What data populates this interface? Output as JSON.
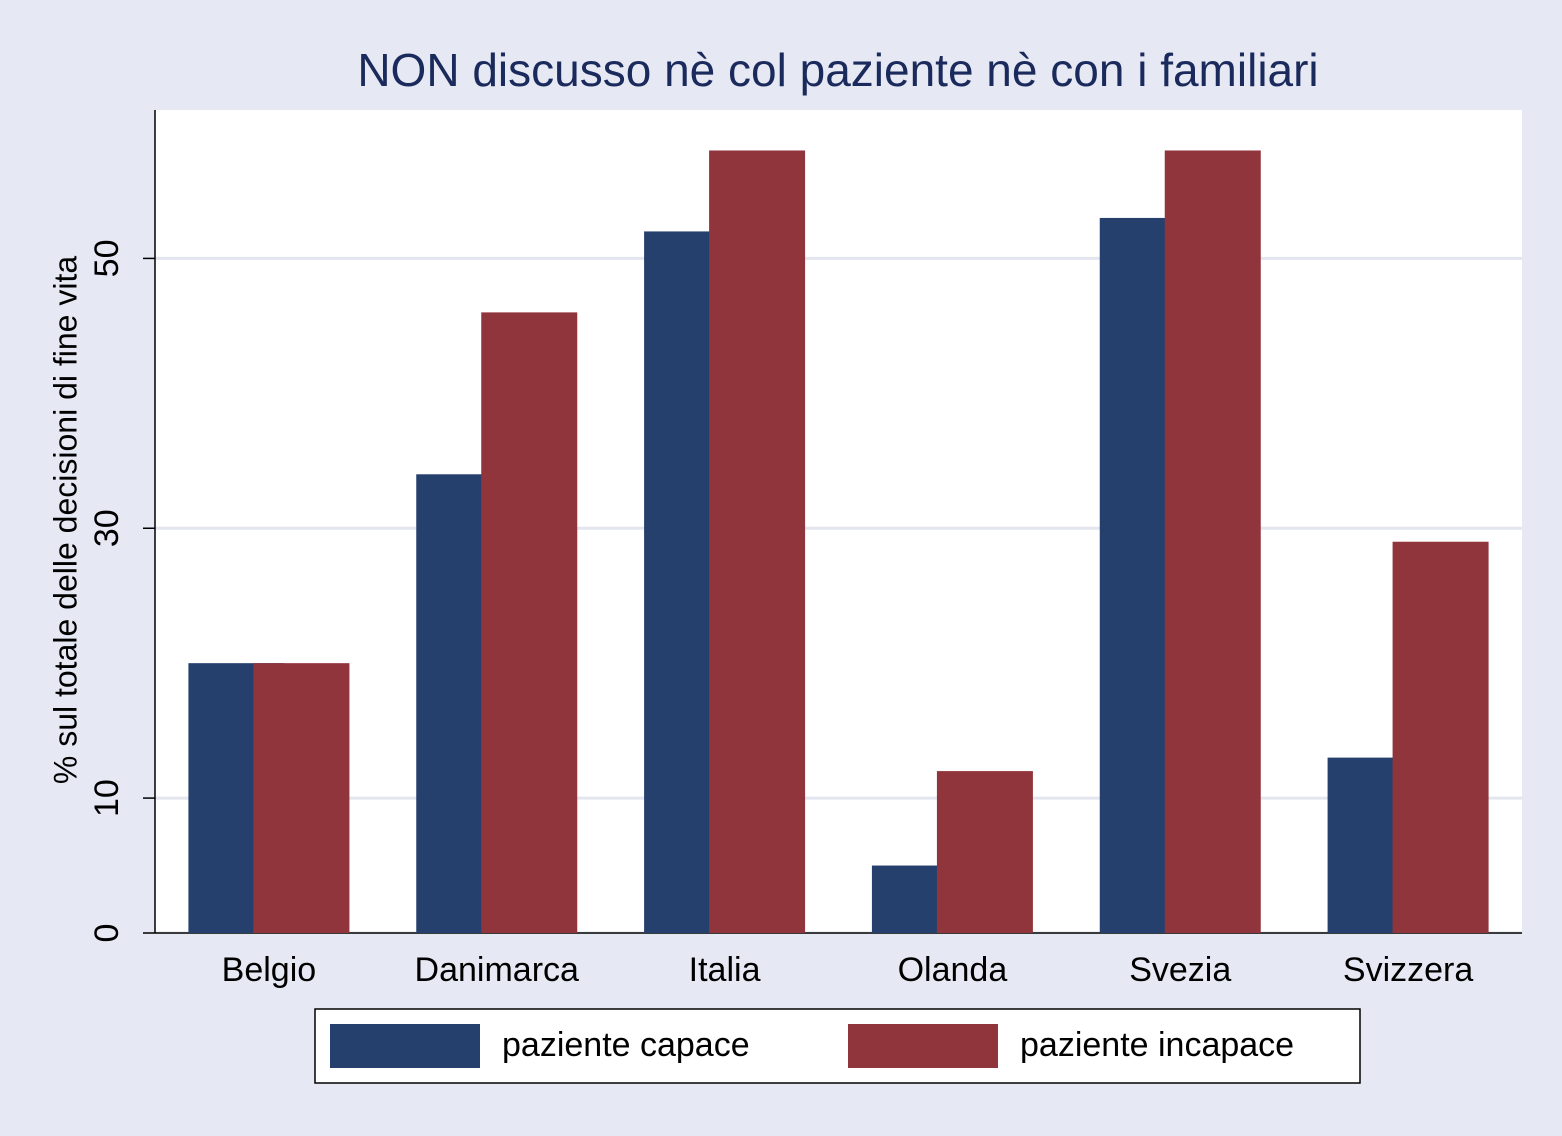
{
  "chart_data": {
    "type": "bar",
    "title": "NON discusso nè col paziente nè con i familiari",
    "y_label": "% sul totale delle decisioni di fine vita",
    "categories": [
      "Belgio",
      "Danimarca",
      "Italia",
      "Olanda",
      "Svezia",
      "Svizzera"
    ],
    "series": [
      {
        "name": "paziente capace",
        "color": "#26406e",
        "values": [
          20,
          34,
          52,
          5,
          53,
          13
        ]
      },
      {
        "name": "paziente incapace",
        "color": "#90353c",
        "values": [
          20,
          46,
          58,
          12,
          58,
          29
        ]
      }
    ],
    "ylim": [
      0,
      61
    ],
    "yticks": [
      0,
      10,
      30,
      50
    ],
    "grid": true,
    "legend": "bottom"
  }
}
